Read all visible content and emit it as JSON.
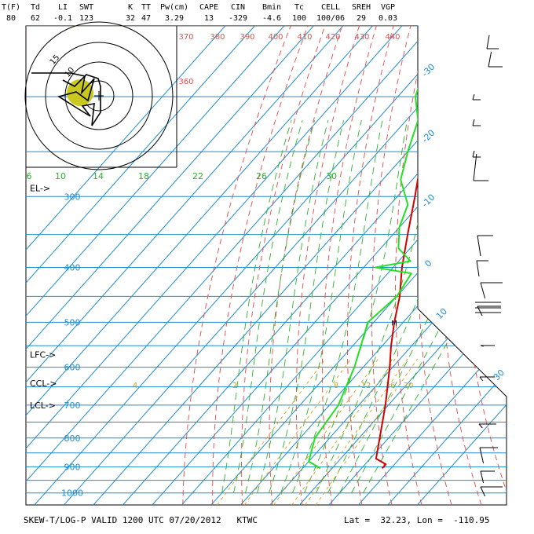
{
  "indices": [
    {
      "label": "T(F)",
      "value": "80"
    },
    {
      "label": "Td",
      "value": "62"
    },
    {
      "label": "LI",
      "value": "-0.1"
    },
    {
      "label": "SWT",
      "value": "123"
    },
    {
      "label": "K",
      "value": "32"
    },
    {
      "label": "TT",
      "value": "47"
    },
    {
      "label": "Pw(cm)",
      "value": "3.29"
    },
    {
      "label": "CAPE",
      "value": "13"
    },
    {
      "label": "CIN",
      "value": "-329"
    },
    {
      "label": "Bmin",
      "value": "-4.6"
    },
    {
      "label": "Tc",
      "value": "100"
    },
    {
      "label": "CELL",
      "value": "100/06"
    },
    {
      "label": "SREH",
      "value": "29"
    },
    {
      "label": "VGP",
      "value": "0.03"
    }
  ],
  "footer": {
    "title": "SKEW-T/LOG-P VALID 1200 UTC 07/20/2012   KTWC",
    "lat_label": "Lat =",
    "lat": "32.23",
    "lon_sep": ", Lon =",
    "lon": "-110.95"
  },
  "colors": {
    "isobar": "#1e8ccc",
    "isotherm": "#1e8ccc",
    "dry_adiabat": "#e0484c",
    "moist_adiabat": "#2bb22b",
    "mixing_ratio": "#d2a21e",
    "temperature": "#d40000",
    "dewpoint": "#22e022",
    "hodo_fill": "#c8c81e"
  },
  "chart_data": {
    "type": "line",
    "title": "SKEW-T/LOG-P VALID 1200 UTC 07/20/2012",
    "station": "KTWC",
    "y_axis": "pressure (hPa), log scale",
    "pressure_labels": [
      "300",
      "400",
      "500",
      "600",
      "700",
      "800",
      "900",
      "1000"
    ],
    "temperature_labels": [
      "-30",
      "-20",
      "-10",
      "0",
      "10",
      "30"
    ],
    "theta_labels": [
      "370",
      "380",
      "390",
      "400",
      "410",
      "420",
      "430",
      "440",
      "360"
    ],
    "mixing_ratio_labels_top": [
      "6",
      "10",
      "14",
      "18",
      "22",
      "26",
      "30"
    ],
    "mixing_ratio_labels_bottom": [
      "4",
      "2",
      "8",
      "12",
      "16",
      "20"
    ],
    "hodograph_ring_labels": [
      "15",
      "10"
    ],
    "levels": [
      {
        "label": "EL->",
        "p": 290
      },
      {
        "label": "LFC->",
        "p": 570
      },
      {
        "label": "CCL->",
        "p": 640
      },
      {
        "label": "LCL->",
        "p": 700
      }
    ],
    "series": [
      {
        "points": [
          [
            905,
            37
          ],
          [
            890,
            37
          ],
          [
            870,
            32
          ],
          [
            800,
            27
          ],
          [
            700,
            19
          ],
          [
            600,
            9
          ],
          [
            550,
            3
          ],
          [
            500,
            -3
          ],
          [
            450,
            -9
          ],
          [
            400,
            -17
          ],
          [
            350,
            -25
          ],
          [
            300,
            -34
          ],
          [
            250,
            -45
          ],
          [
            220,
            -52
          ],
          [
            200,
            -57
          ],
          [
            180,
            -59
          ],
          [
            170,
            -60
          ],
          [
            160,
            -58
          ]
        ]
      },
      {
        "points": [
          [
            905,
            16
          ],
          [
            880,
            10
          ],
          [
            800,
            5
          ],
          [
            700,
            3
          ],
          [
            600,
            -3
          ],
          [
            500,
            -12
          ],
          [
            450,
            -10
          ],
          [
            410,
            -12
          ],
          [
            400,
            -26
          ],
          [
            390,
            -16
          ],
          [
            370,
            -24
          ],
          [
            340,
            -30
          ],
          [
            310,
            -34
          ],
          [
            280,
            -44
          ],
          [
            250,
            -50
          ],
          [
            220,
            -56
          ],
          [
            200,
            -64
          ],
          [
            180,
            -69
          ],
          [
            160,
            -70
          ]
        ]
      }
    ],
    "hodograph": {
      "points": [
        [
          90,
          93
        ],
        [
          108,
          97
        ],
        [
          104,
          118
        ],
        [
          120,
          100
        ],
        [
          112,
          128
        ],
        [
          97,
          117
        ],
        [
          75,
          123
        ],
        [
          97,
          137
        ],
        [
          115,
          148
        ],
        [
          105,
          135
        ],
        [
          120,
          132
        ],
        [
          117,
          160
        ],
        [
          128,
          143
        ],
        [
          128,
          110
        ],
        [
          125,
          100
        ],
        [
          110,
          95
        ],
        [
          95,
          110
        ],
        [
          80,
          102
        ]
      ]
    }
  }
}
